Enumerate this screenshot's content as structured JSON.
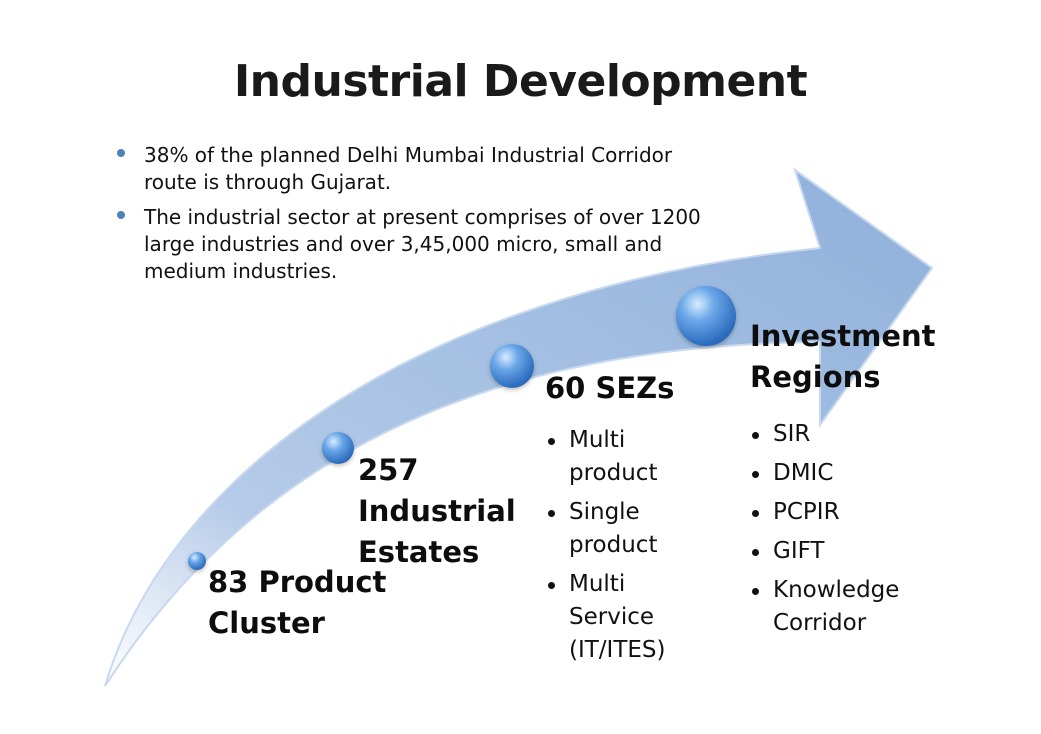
{
  "title": "Industrial Development",
  "intro_bullets": [
    "38% of the planned Delhi Mumbai Industrial Corridor route is through Gujarat.",
    "The industrial sector at present comprises of over 1200 large industries and over 3,45,000 micro, small and medium industries."
  ],
  "stages": [
    {
      "label": "83 Product Cluster",
      "items": []
    },
    {
      "label": "257 Industrial Estates",
      "items": []
    },
    {
      "label": "60 SEZs",
      "items": [
        "Multi product",
        "Single product",
        "Multi Service (IT/ITES)"
      ]
    },
    {
      "label": "Investment Regions",
      "items": [
        "SIR",
        "DMIC",
        "PCPIR",
        "GIFT",
        "Knowledge Corridor"
      ]
    }
  ],
  "colors": {
    "arrow": "#9ab8de",
    "arrow_edge": "#c7d9ef",
    "ball": "#2f6fc0",
    "bullet": "#4f81bd"
  }
}
